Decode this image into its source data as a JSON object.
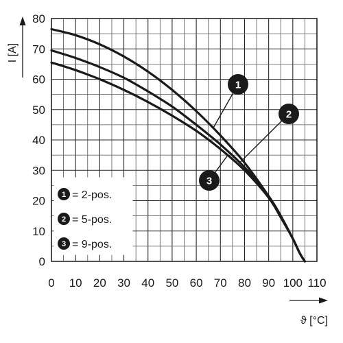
{
  "chart_data": {
    "type": "line",
    "title": "",
    "xlabel": "ϑ [°C]",
    "ylabel": "I [A]",
    "xlim": [
      0,
      110
    ],
    "ylim": [
      0,
      80
    ],
    "x_ticks": [
      0,
      10,
      20,
      30,
      40,
      50,
      60,
      70,
      80,
      90,
      100,
      110
    ],
    "y_ticks": [
      0,
      10,
      20,
      30,
      40,
      50,
      60,
      70,
      80
    ],
    "grid": true,
    "legend_position": "bottom-left",
    "series": [
      {
        "name": "2-pos.",
        "marker": "1",
        "points": [
          [
            0,
            76.5
          ],
          [
            10,
            74.5
          ],
          [
            20,
            71.5
          ],
          [
            30,
            67.5
          ],
          [
            40,
            62.5
          ],
          [
            50,
            56.5
          ],
          [
            60,
            49.5
          ],
          [
            70,
            41.5
          ],
          [
            80,
            32.5
          ],
          [
            90,
            21.5
          ],
          [
            95,
            15
          ],
          [
            100,
            7.5
          ],
          [
            103,
            2.5
          ],
          [
            105,
            0
          ]
        ]
      },
      {
        "name": "5-pos.",
        "marker": "2",
        "points": [
          [
            0,
            69.5
          ],
          [
            10,
            67
          ],
          [
            20,
            64
          ],
          [
            30,
            60.5
          ],
          [
            40,
            56
          ],
          [
            50,
            51
          ],
          [
            60,
            45
          ],
          [
            70,
            38.5
          ],
          [
            80,
            31
          ],
          [
            90,
            21.5
          ],
          [
            95,
            15
          ],
          [
            100,
            7.5
          ],
          [
            103,
            2.5
          ],
          [
            105,
            0
          ]
        ]
      },
      {
        "name": "9-pos.",
        "marker": "3",
        "points": [
          [
            0,
            65.5
          ],
          [
            10,
            63
          ],
          [
            20,
            60
          ],
          [
            30,
            56.5
          ],
          [
            40,
            52.5
          ],
          [
            50,
            48
          ],
          [
            60,
            43
          ],
          [
            70,
            37
          ],
          [
            80,
            30
          ],
          [
            90,
            21
          ],
          [
            95,
            14.5
          ],
          [
            100,
            7.5
          ],
          [
            103,
            2.5
          ],
          [
            105,
            0
          ]
        ]
      }
    ],
    "legend": [
      {
        "marker": "1",
        "text": "= 2-pos."
      },
      {
        "marker": "2",
        "text": "= 5-pos."
      },
      {
        "marker": "3",
        "text": "= 9-pos."
      }
    ],
    "callouts": [
      {
        "marker": "1",
        "series": 0,
        "at_x": 67
      },
      {
        "marker": "2",
        "series": 1,
        "at_x": 78
      },
      {
        "marker": "3",
        "series": 2,
        "at_x": 73
      }
    ]
  }
}
